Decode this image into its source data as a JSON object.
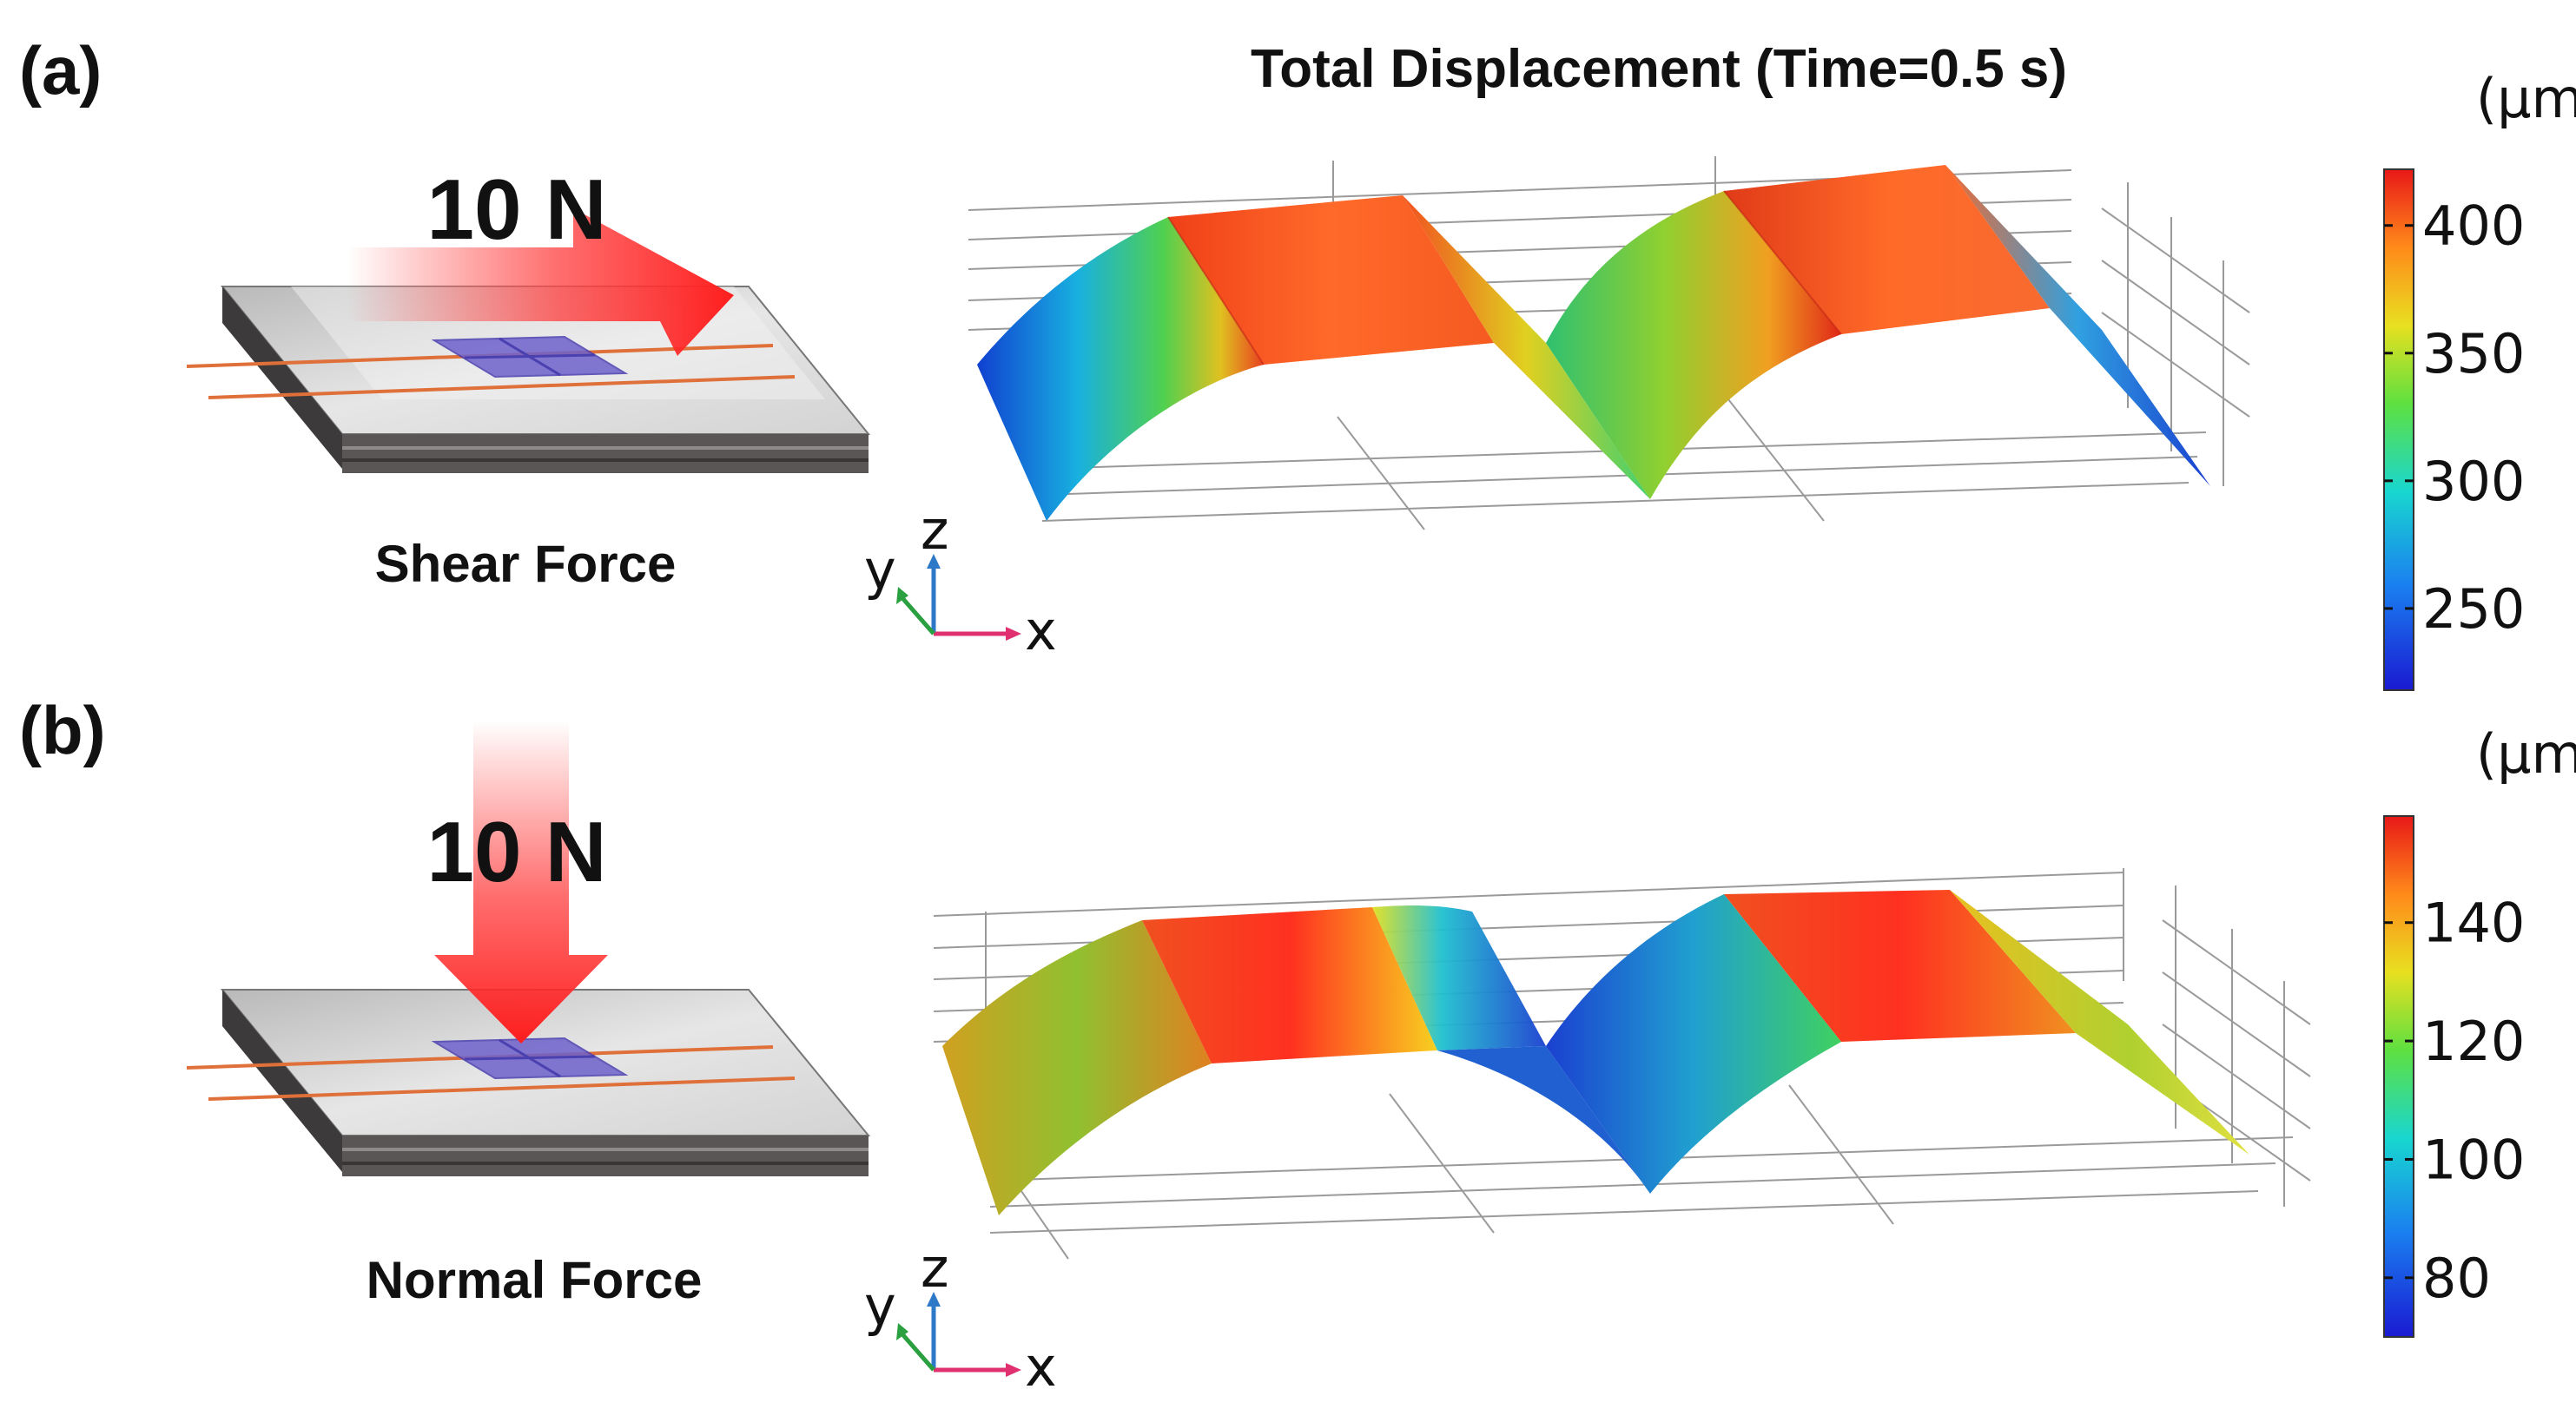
{
  "title": "Total Displacement (Time=0.5 s)",
  "panel_a": {
    "label": "(a)",
    "force_value": "10 N",
    "force_name": "Shear Force",
    "colorbar": {
      "unit": "(μm)",
      "ticks": [
        "400",
        "350",
        "300",
        "250"
      ],
      "range": [
        218,
        422
      ]
    }
  },
  "panel_b": {
    "label": "(b)",
    "force_value": "10 N",
    "force_name": "Normal Force",
    "colorbar": {
      "unit": "(μm)",
      "ticks": [
        "140",
        "120",
        "100",
        "80"
      ],
      "range": [
        70,
        158
      ]
    }
  },
  "axes_triad": {
    "x": "x",
    "y": "y",
    "z": "z"
  },
  "colors": {
    "arrow": "#ff2a2a",
    "electrode": "#e0703a",
    "sensor": "#7a6fd0",
    "plate_top": "#c9c9c9",
    "plate_side": "#5a5656"
  }
}
